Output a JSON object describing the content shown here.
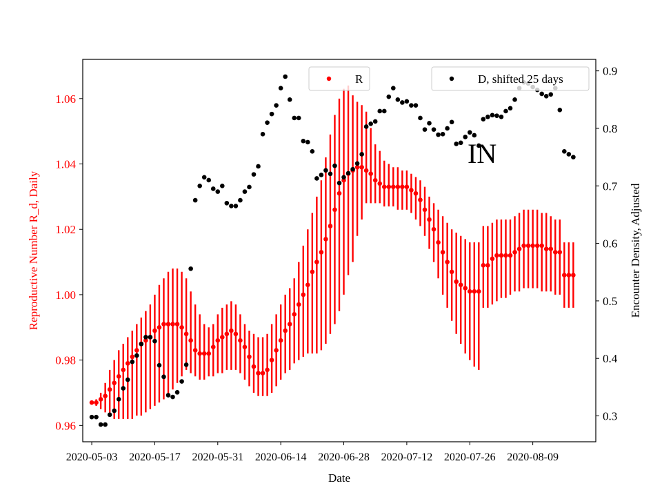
{
  "chart_data": {
    "type": "scatter",
    "title": "",
    "xlabel": "Date",
    "ylabel_left": "Reproductive Number R_d, Daily",
    "ylabel_right": "Encounter Density, Adjusted",
    "annotation": "IN",
    "x_ticks": [
      "2020-05-03",
      "2020-05-17",
      "2020-05-31",
      "2020-06-14",
      "2020-06-28",
      "2020-07-12",
      "2020-07-26",
      "2020-08-09"
    ],
    "x_range": [
      "2020-05-01",
      "2020-08-23"
    ],
    "y_left_ticks": [
      "0.96",
      "0.98",
      "1.00",
      "1.02",
      "1.04",
      "1.06"
    ],
    "y_left_range": [
      0.955,
      1.072
    ],
    "y_right_ticks": [
      "0.3",
      "0.4",
      "0.5",
      "0.6",
      "0.7",
      "0.8",
      "0.9"
    ],
    "y_right_range": [
      0.255,
      0.92
    ],
    "colors": {
      "r": "#ff0000",
      "d": "#000000",
      "left_axis": "#ff0000",
      "right_axis": "#000000"
    },
    "legend": [
      {
        "label": "R",
        "color": "#ff0000",
        "placement": "top-center"
      },
      {
        "label": "D, shifted 25 days",
        "color": "#000000",
        "placement": "top-right"
      }
    ],
    "series": [
      {
        "name": "R",
        "axis": "left",
        "x": [
          "2020-05-03",
          "2020-05-04",
          "2020-05-05",
          "2020-05-06",
          "2020-05-07",
          "2020-05-08",
          "2020-05-09",
          "2020-05-10",
          "2020-05-11",
          "2020-05-12",
          "2020-05-13",
          "2020-05-14",
          "2020-05-15",
          "2020-05-16",
          "2020-05-17",
          "2020-05-18",
          "2020-05-19",
          "2020-05-20",
          "2020-05-21",
          "2020-05-22",
          "2020-05-23",
          "2020-05-24",
          "2020-05-25",
          "2020-05-26",
          "2020-05-27",
          "2020-05-28",
          "2020-05-29",
          "2020-05-30",
          "2020-05-31",
          "2020-06-01",
          "2020-06-02",
          "2020-06-03",
          "2020-06-04",
          "2020-06-05",
          "2020-06-06",
          "2020-06-07",
          "2020-06-08",
          "2020-06-09",
          "2020-06-10",
          "2020-06-11",
          "2020-06-12",
          "2020-06-13",
          "2020-06-14",
          "2020-06-15",
          "2020-06-16",
          "2020-06-17",
          "2020-06-18",
          "2020-06-19",
          "2020-06-20",
          "2020-06-21",
          "2020-06-22",
          "2020-06-23",
          "2020-06-24",
          "2020-06-25",
          "2020-06-26",
          "2020-06-27",
          "2020-06-28",
          "2020-06-29",
          "2020-06-30",
          "2020-07-01",
          "2020-07-02",
          "2020-07-03",
          "2020-07-04",
          "2020-07-05",
          "2020-07-06",
          "2020-07-07",
          "2020-07-08",
          "2020-07-09",
          "2020-07-10",
          "2020-07-11",
          "2020-07-12",
          "2020-07-13",
          "2020-07-14",
          "2020-07-15",
          "2020-07-16",
          "2020-07-17",
          "2020-07-18",
          "2020-07-19",
          "2020-07-20",
          "2020-07-21",
          "2020-07-22",
          "2020-07-23",
          "2020-07-24",
          "2020-07-25",
          "2020-07-26",
          "2020-07-27",
          "2020-07-28",
          "2020-07-29",
          "2020-07-30",
          "2020-07-31",
          "2020-08-01",
          "2020-08-02",
          "2020-08-03",
          "2020-08-04",
          "2020-08-05",
          "2020-08-06",
          "2020-08-07",
          "2020-08-08",
          "2020-08-09",
          "2020-08-10",
          "2020-08-11",
          "2020-08-12",
          "2020-08-13",
          "2020-08-14",
          "2020-08-15",
          "2020-08-16",
          "2020-08-17",
          "2020-08-18"
        ],
        "values": [
          0.967,
          0.967,
          0.968,
          0.969,
          0.971,
          0.973,
          0.975,
          0.977,
          0.979,
          0.981,
          0.983,
          0.985,
          0.986,
          0.987,
          0.989,
          0.99,
          0.991,
          0.991,
          0.991,
          0.991,
          0.99,
          0.988,
          0.986,
          0.983,
          0.982,
          0.982,
          0.982,
          0.984,
          0.986,
          0.987,
          0.988,
          0.989,
          0.988,
          0.986,
          0.984,
          0.981,
          0.978,
          0.976,
          0.976,
          0.977,
          0.98,
          0.983,
          0.986,
          0.989,
          0.991,
          0.994,
          0.997,
          1.0,
          1.003,
          1.007,
          1.01,
          1.013,
          1.017,
          1.021,
          1.026,
          1.031,
          1.035,
          1.037,
          1.038,
          1.039,
          1.039,
          1.038,
          1.037,
          1.035,
          1.034,
          1.033,
          1.033,
          1.033,
          1.033,
          1.033,
          1.033,
          1.032,
          1.031,
          1.029,
          1.026,
          1.023,
          1.02,
          1.016,
          1.013,
          1.01,
          1.007,
          1.004,
          1.003,
          1.002,
          1.001,
          1.001,
          1.001,
          1.009,
          1.009,
          1.011,
          1.012,
          1.012,
          1.012,
          1.012,
          1.013,
          1.014,
          1.015,
          1.015,
          1.015,
          1.015,
          1.015,
          1.014,
          1.014,
          1.013,
          1.013,
          1.006,
          1.006,
          1.006
        ],
        "err_low": [
          0.967,
          0.966,
          0.965,
          0.964,
          0.963,
          0.962,
          0.962,
          0.962,
          0.962,
          0.962,
          0.963,
          0.963,
          0.964,
          0.965,
          0.966,
          0.967,
          0.968,
          0.969,
          0.971,
          0.973,
          0.975,
          0.977,
          0.976,
          0.975,
          0.974,
          0.974,
          0.975,
          0.975,
          0.976,
          0.976,
          0.977,
          0.977,
          0.977,
          0.976,
          0.974,
          0.972,
          0.97,
          0.969,
          0.969,
          0.969,
          0.97,
          0.972,
          0.974,
          0.976,
          0.977,
          0.979,
          0.98,
          0.981,
          0.982,
          0.982,
          0.982,
          0.983,
          0.985,
          0.988,
          0.991,
          0.995,
          1.0,
          1.006,
          1.01,
          1.018,
          1.023,
          1.028,
          1.028,
          1.028,
          1.028,
          1.027,
          1.027,
          1.027,
          1.026,
          1.026,
          1.026,
          1.025,
          1.023,
          1.021,
          1.018,
          1.014,
          1.01,
          1.005,
          1.0,
          0.996,
          0.992,
          0.988,
          0.985,
          0.982,
          0.98,
          0.978,
          0.977,
          0.996,
          0.996,
          0.997,
          0.998,
          0.999,
          0.999,
          1.0,
          1.001,
          1.001,
          1.002,
          1.002,
          1.002,
          1.002,
          1.001,
          1.001,
          1.001,
          1.0,
          1.0,
          0.996,
          0.996,
          0.996
        ],
        "err_high": [
          0.967,
          0.968,
          0.97,
          0.973,
          0.977,
          0.98,
          0.983,
          0.985,
          0.987,
          0.989,
          0.991,
          0.993,
          0.995,
          0.997,
          1.0,
          1.003,
          1.005,
          1.007,
          1.008,
          1.008,
          1.007,
          1.005,
          1.001,
          0.997,
          0.994,
          0.991,
          0.99,
          0.991,
          0.994,
          0.996,
          0.997,
          0.998,
          0.997,
          0.994,
          0.991,
          0.989,
          0.988,
          0.987,
          0.987,
          0.988,
          0.991,
          0.994,
          0.997,
          1.0,
          1.002,
          1.005,
          1.01,
          1.015,
          1.02,
          1.025,
          1.03,
          1.035,
          1.042,
          1.049,
          1.055,
          1.06,
          1.063,
          1.064,
          1.061,
          1.059,
          1.058,
          1.056,
          1.051,
          1.046,
          1.044,
          1.041,
          1.04,
          1.039,
          1.039,
          1.038,
          1.038,
          1.037,
          1.036,
          1.035,
          1.033,
          1.03,
          1.028,
          1.026,
          1.024,
          1.022,
          1.02,
          1.019,
          1.018,
          1.017,
          1.016,
          1.016,
          1.016,
          1.021,
          1.021,
          1.022,
          1.023,
          1.023,
          1.023,
          1.023,
          1.024,
          1.025,
          1.026,
          1.026,
          1.026,
          1.026,
          1.025,
          1.025,
          1.024,
          1.023,
          1.023,
          1.016,
          1.016,
          1.016
        ]
      },
      {
        "name": "D, shifted 25 days",
        "axis": "right",
        "x": [
          "2020-05-03",
          "2020-05-04",
          "2020-05-05",
          "2020-05-06",
          "2020-05-07",
          "2020-05-08",
          "2020-05-09",
          "2020-05-10",
          "2020-05-11",
          "2020-05-12",
          "2020-05-13",
          "2020-05-14",
          "2020-05-15",
          "2020-05-16",
          "2020-05-17",
          "2020-05-18",
          "2020-05-19",
          "2020-05-20",
          "2020-05-21",
          "2020-05-22",
          "2020-05-23",
          "2020-05-24",
          "2020-05-25",
          "2020-05-26",
          "2020-05-27",
          "2020-05-28",
          "2020-05-29",
          "2020-05-30",
          "2020-05-31",
          "2020-06-01",
          "2020-06-02",
          "2020-06-03",
          "2020-06-04",
          "2020-06-05",
          "2020-06-06",
          "2020-06-07",
          "2020-06-08",
          "2020-06-09",
          "2020-06-10",
          "2020-06-11",
          "2020-06-12",
          "2020-06-13",
          "2020-06-14",
          "2020-06-15",
          "2020-06-16",
          "2020-06-17",
          "2020-06-18",
          "2020-06-19",
          "2020-06-20",
          "2020-06-21",
          "2020-06-22",
          "2020-06-23",
          "2020-06-24",
          "2020-06-25",
          "2020-06-26",
          "2020-06-27",
          "2020-06-28",
          "2020-06-29",
          "2020-06-30",
          "2020-07-01",
          "2020-07-02",
          "2020-07-03",
          "2020-07-04",
          "2020-07-05",
          "2020-07-06",
          "2020-07-07",
          "2020-07-08",
          "2020-07-09",
          "2020-07-10",
          "2020-07-11",
          "2020-07-12",
          "2020-07-13",
          "2020-07-14",
          "2020-07-15",
          "2020-07-16",
          "2020-07-17",
          "2020-07-18",
          "2020-07-19",
          "2020-07-20",
          "2020-07-21",
          "2020-07-22",
          "2020-07-23",
          "2020-07-24",
          "2020-07-25",
          "2020-07-26",
          "2020-07-27",
          "2020-07-28",
          "2020-07-29",
          "2020-07-30",
          "2020-07-31",
          "2020-08-01",
          "2020-08-02",
          "2020-08-03",
          "2020-08-04",
          "2020-08-05",
          "2020-08-06",
          "2020-08-07",
          "2020-08-08",
          "2020-08-09",
          "2020-08-10",
          "2020-08-11",
          "2020-08-12",
          "2020-08-13",
          "2020-08-14",
          "2020-08-15",
          "2020-08-16",
          "2020-08-17",
          "2020-08-18"
        ],
        "values": [
          0.298,
          0.298,
          0.285,
          0.285,
          0.302,
          0.309,
          0.329,
          0.348,
          0.363,
          0.394,
          0.405,
          0.425,
          0.437,
          0.437,
          0.43,
          0.388,
          0.368,
          0.336,
          0.333,
          0.341,
          0.36,
          0.389,
          0.556,
          0.675,
          0.7,
          0.715,
          0.71,
          0.695,
          0.69,
          0.7,
          0.67,
          0.665,
          0.665,
          0.675,
          0.69,
          0.698,
          0.72,
          0.734,
          0.79,
          0.81,
          0.825,
          0.84,
          0.87,
          0.89,
          0.85,
          0.818,
          0.818,
          0.778,
          0.776,
          0.76,
          0.713,
          0.719,
          0.727,
          0.721,
          0.735,
          0.705,
          0.715,
          0.722,
          0.729,
          0.739,
          0.755,
          0.803,
          0.808,
          0.812,
          0.83,
          0.83,
          0.855,
          0.87,
          0.85,
          0.845,
          0.847,
          0.84,
          0.84,
          0.818,
          0.798,
          0.809,
          0.798,
          0.789,
          0.79,
          0.8,
          0.811,
          0.773,
          0.775,
          0.785,
          0.793,
          0.788,
          0.77,
          0.816,
          0.82,
          0.823,
          0.822,
          0.82,
          0.83,
          0.835,
          0.85,
          0.87,
          0.88,
          0.878,
          0.872,
          0.867,
          0.86,
          0.856,
          0.859,
          0.87,
          0.832,
          0.76,
          0.755,
          0.75
        ]
      }
    ]
  }
}
